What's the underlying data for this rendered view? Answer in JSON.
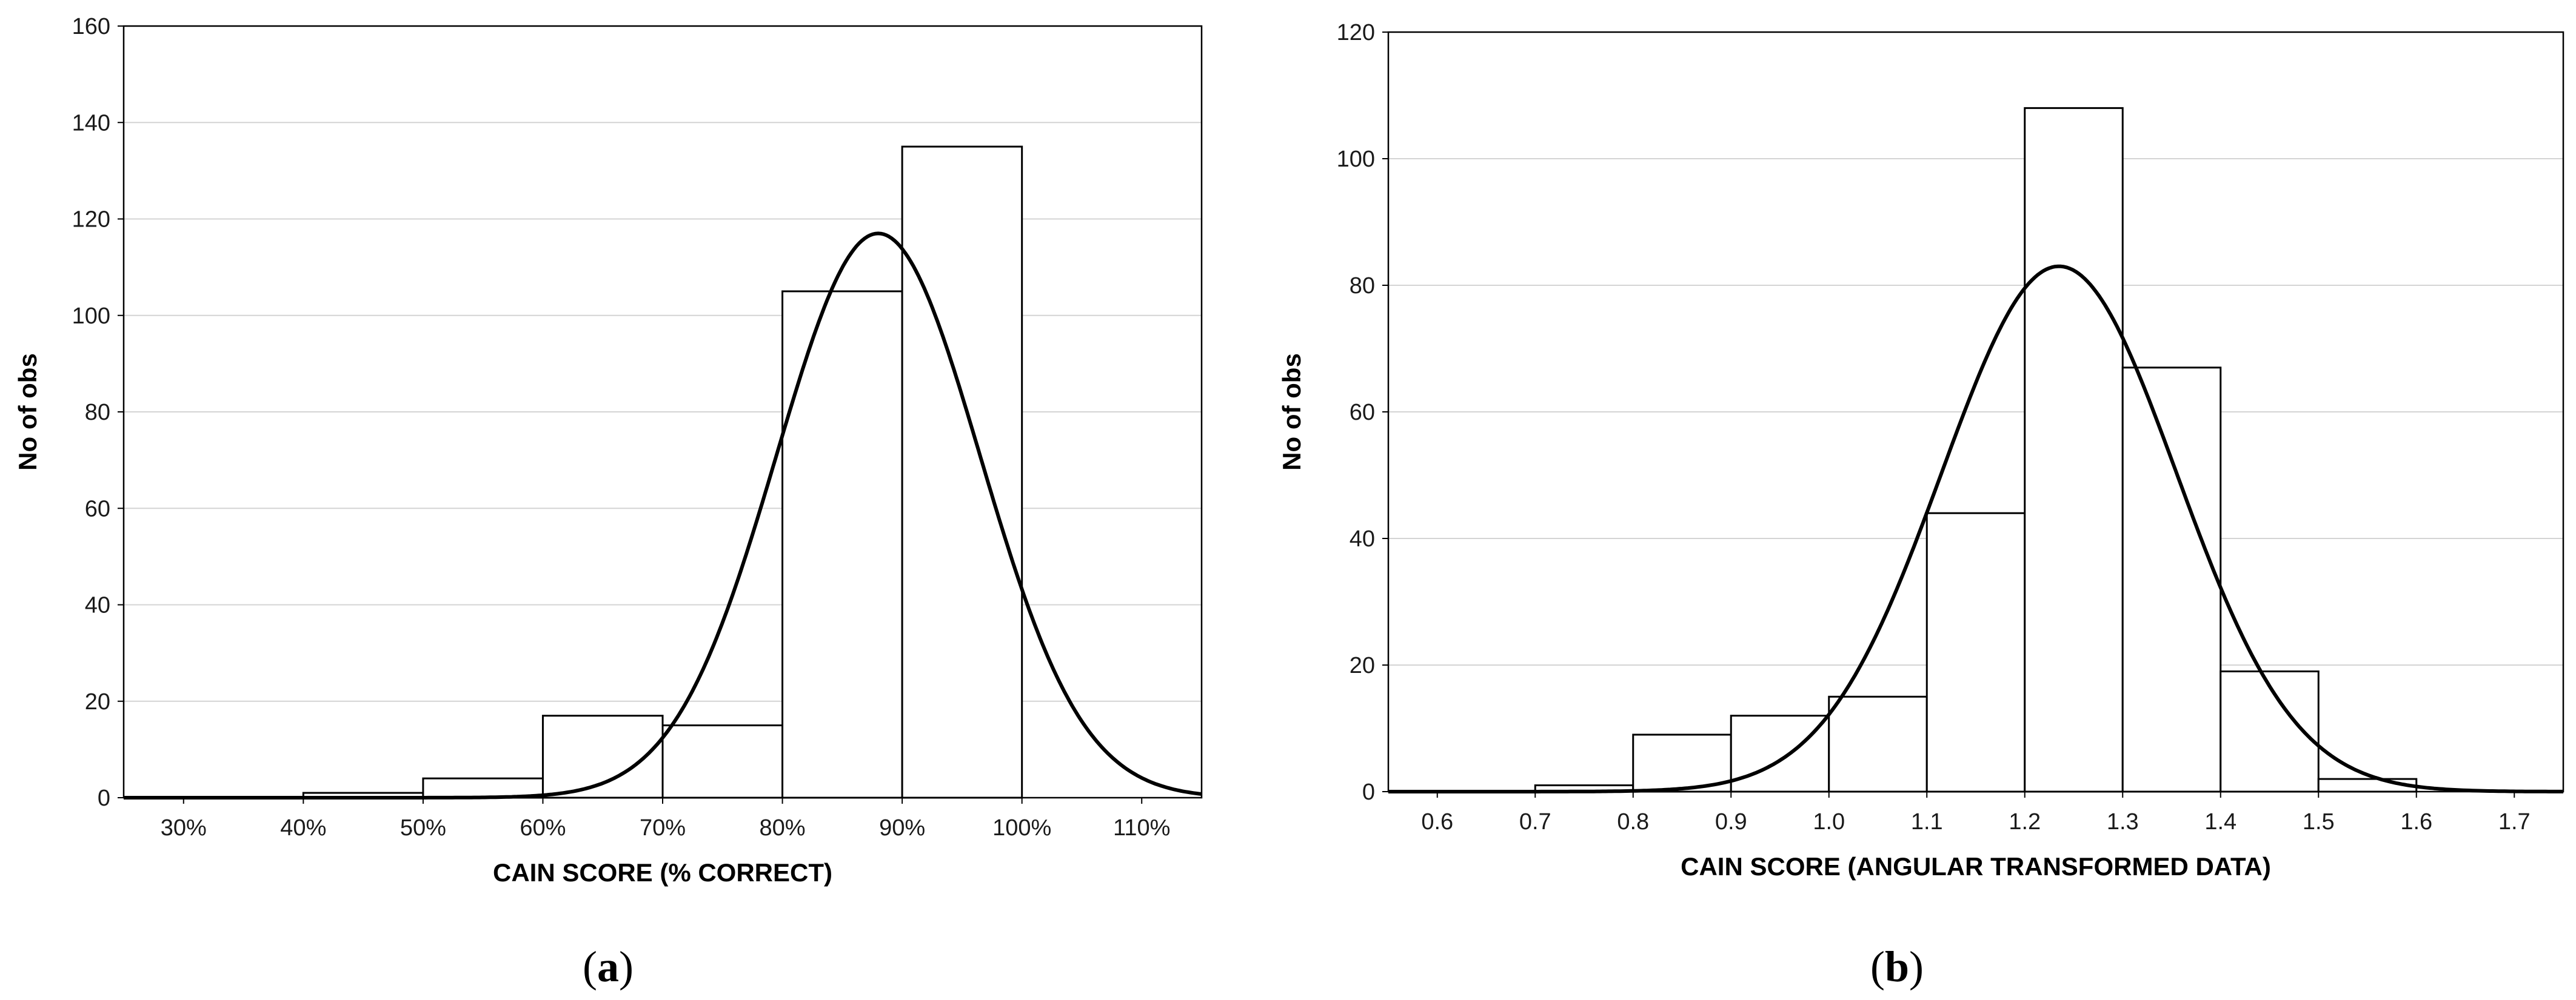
{
  "chart_data": [
    {
      "panel_label": "a",
      "type": "bar",
      "title": "",
      "xlabel": "CAIN SCORE (% CORRECT)",
      "ylabel": "No of obs",
      "xlim": [
        25,
        115
      ],
      "ylim": [
        0,
        160
      ],
      "yticks": [
        0,
        20,
        40,
        60,
        80,
        100,
        120,
        140,
        160
      ],
      "xticks": [
        30,
        40,
        50,
        60,
        70,
        80,
        90,
        100,
        110
      ],
      "xtick_labels": [
        "30%",
        "40%",
        "50%",
        "60%",
        "70%",
        "80%",
        "90%",
        "100%",
        "110%"
      ],
      "bins": [
        {
          "x0": 25,
          "x1": 40,
          "value": 0
        },
        {
          "x0": 40,
          "x1": 50,
          "value": 1
        },
        {
          "x0": 50,
          "x1": 60,
          "value": 4
        },
        {
          "x0": 60,
          "x1": 70,
          "value": 17
        },
        {
          "x0": 70,
          "x1": 80,
          "value": 15
        },
        {
          "x0": 80,
          "x1": 90,
          "value": 105
        },
        {
          "x0": 90,
          "x1": 100,
          "value": 135
        }
      ],
      "normal_fit": {
        "mean": 88,
        "sd": 8.5,
        "peak": 117
      },
      "grid": true
    },
    {
      "panel_label": "b",
      "type": "bar",
      "title": "",
      "xlabel": "CAIN SCORE (ANGULAR TRANSFORMED DATA)",
      "ylabel": "No of obs",
      "xlim": [
        0.55,
        1.75
      ],
      "ylim": [
        0,
        120
      ],
      "yticks": [
        0,
        20,
        40,
        60,
        80,
        100,
        120
      ],
      "xticks": [
        0.6,
        0.7,
        0.8,
        0.9,
        1.0,
        1.1,
        1.2,
        1.3,
        1.4,
        1.5,
        1.6,
        1.7
      ],
      "xtick_labels": [
        "0.6",
        "0.7",
        "0.8",
        "0.9",
        "1.0",
        "1.1",
        "1.2",
        "1.3",
        "1.4",
        "1.5",
        "1.6",
        "1.7"
      ],
      "bins": [
        {
          "x0": 0.7,
          "x1": 0.8,
          "value": 1
        },
        {
          "x0": 0.8,
          "x1": 0.9,
          "value": 9
        },
        {
          "x0": 0.9,
          "x1": 1.0,
          "value": 12
        },
        {
          "x0": 1.0,
          "x1": 1.1,
          "value": 15
        },
        {
          "x0": 1.1,
          "x1": 1.2,
          "value": 44
        },
        {
          "x0": 1.2,
          "x1": 1.3,
          "value": 108
        },
        {
          "x0": 1.3,
          "x1": 1.4,
          "value": 67
        },
        {
          "x0": 1.4,
          "x1": 1.5,
          "value": 19
        },
        {
          "x0": 1.5,
          "x1": 1.6,
          "value": 2
        }
      ],
      "normal_fit": {
        "mean": 1.235,
        "sd": 0.12,
        "peak": 83
      },
      "grid": true
    }
  ]
}
